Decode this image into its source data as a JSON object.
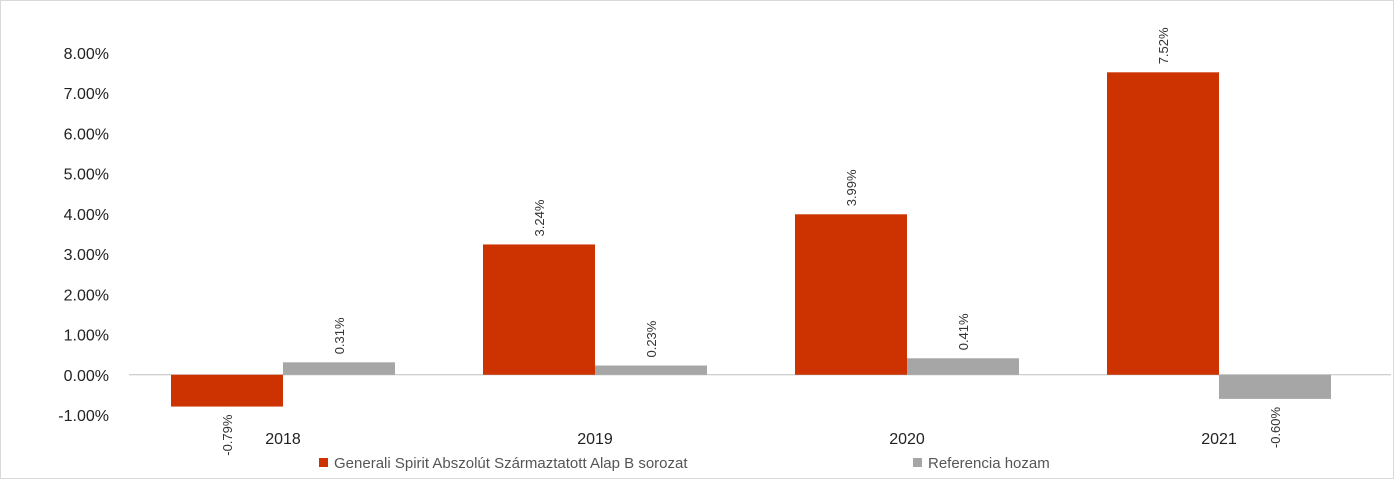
{
  "chart_data": {
    "type": "bar",
    "categories": [
      "2018",
      "2019",
      "2020",
      "2021"
    ],
    "series": [
      {
        "name": "Generali Spirit Abszolút Származtatott Alap B sorozat",
        "values": [
          -0.79,
          3.24,
          3.99,
          7.52
        ],
        "labels": [
          "-0.79%",
          "3.24%",
          "3.99%",
          "7.52%"
        ],
        "color": "#cc3300"
      },
      {
        "name": "Referencia hozam",
        "values": [
          0.31,
          0.23,
          0.41,
          -0.6
        ],
        "labels": [
          "0.31%",
          "0.23%",
          "0.41%",
          "-0.60%"
        ],
        "color": "#a6a6a6"
      }
    ],
    "yticks": [
      "8.00%",
      "7.00%",
      "6.00%",
      "5.00%",
      "4.00%",
      "3.00%",
      "2.00%",
      "1.00%",
      "0.00%",
      "-1.00%"
    ],
    "ylim": [
      -1,
      8
    ],
    "grid": false,
    "legend_position": "bottom",
    "title": "",
    "xlabel": "",
    "ylabel": ""
  }
}
